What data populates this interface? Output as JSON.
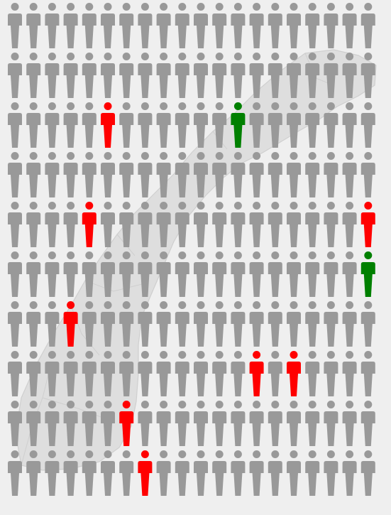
{
  "figure": {
    "rows": 10,
    "cols": 20,
    "colors": {
      "background": "#efefef",
      "default": "#999999",
      "red": "#ff0000",
      "green": "#008000",
      "map_fill": "#dedede",
      "map_stroke": "#cfcfcf"
    },
    "highlights": [
      {
        "row": 2,
        "col": 5,
        "color": "red"
      },
      {
        "row": 2,
        "col": 12,
        "color": "green"
      },
      {
        "row": 4,
        "col": 4,
        "color": "red"
      },
      {
        "row": 4,
        "col": 19,
        "color": "red"
      },
      {
        "row": 5,
        "col": 19,
        "color": "green"
      },
      {
        "row": 6,
        "col": 3,
        "color": "red"
      },
      {
        "row": 7,
        "col": 13,
        "color": "red"
      },
      {
        "row": 7,
        "col": 15,
        "color": "red"
      },
      {
        "row": 8,
        "col": 6,
        "color": "red"
      },
      {
        "row": 9,
        "col": 7,
        "color": "red"
      }
    ],
    "icon_name": "person-icon",
    "background_image": "map-of-norway"
  }
}
